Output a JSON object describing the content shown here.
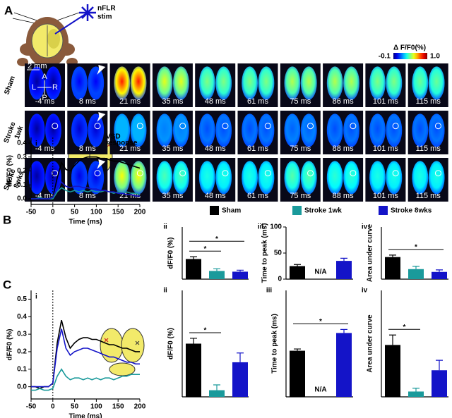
{
  "figure_labels": {
    "a": "A",
    "b": "B",
    "c": "C"
  },
  "panel_a": {
    "stim_label": [
      "nFLR",
      "stim"
    ],
    "colorbar": {
      "label": "Δ F/F0(%)",
      "ticks": [
        {
          "value": -0.1,
          "label": "-0.1"
        },
        {
          "value": 1.0,
          "label": "1.0"
        }
      ]
    },
    "scale_label": "2 mm",
    "orientation": [
      "A",
      "P",
      "L",
      "R"
    ],
    "rows": [
      {
        "label": [
          "Sham"
        ],
        "times": [
          "-4 ms",
          "8 ms",
          "21 ms",
          "35 ms",
          "48 ms",
          "61 ms",
          "75 ms",
          "86 ms",
          "101 ms",
          "115 ms"
        ]
      },
      {
        "label": [
          "Stroke",
          "1wk"
        ],
        "times": [
          "-4 ms",
          "8 ms",
          "21 ms",
          "35 ms",
          "48 ms",
          "61 ms",
          "75 ms",
          "88 ms",
          "101 ms",
          "115 ms"
        ]
      },
      {
        "label": [
          "Stroke",
          "8wks"
        ],
        "times": [
          "-4 ms",
          "8 ms",
          "21 ms",
          "35 ms",
          "48 ms",
          "61 ms",
          "75 ms",
          "88 ms",
          "101 ms",
          "115 ms"
        ]
      }
    ]
  },
  "brain_b_label": [
    "VSD",
    "response"
  ],
  "chart_data": [
    {
      "type": "line",
      "panel_label": "i",
      "ylabel": "dF/F0 (%)",
      "xlabel": "Time (ms)",
      "x": [
        -50,
        -40,
        -30,
        -20,
        -10,
        0,
        10,
        20,
        30,
        40,
        50,
        60,
        70,
        80,
        90,
        100,
        110,
        120,
        130,
        140,
        150,
        160,
        170,
        180,
        190,
        200
      ],
      "xlim": [
        -50,
        200
      ],
      "xticks": [
        -50,
        0,
        50,
        100,
        150,
        200
      ],
      "ylim": [
        -0.04,
        0.44
      ],
      "yticks": [
        {
          "value": 0,
          "label": "0.0"
        },
        0.1,
        0.2,
        0.3,
        0.4
      ],
      "series": [
        {
          "name": "Sham",
          "color": "#000000",
          "values": [
            0,
            0,
            0,
            0,
            0,
            0.01,
            0.15,
            0.26,
            0.21,
            0.2,
            0.24,
            0.27,
            0.29,
            0.3,
            0.3,
            0.3,
            0.29,
            0.29,
            0.28,
            0.27,
            0.27,
            0.26,
            0.25,
            0.24,
            0.23,
            0.22
          ]
        },
        {
          "name": "Stroke 1wk",
          "color": "#1a9a9b",
          "values": [
            0,
            0,
            0.01,
            0,
            0,
            0,
            0.05,
            0.08,
            0.06,
            0.05,
            0.06,
            0.05,
            0.06,
            0.05,
            0.06,
            0.05,
            0.05,
            0.06,
            0.05,
            0.04,
            0.05,
            0.04,
            0.05,
            0.04,
            0.04,
            0.03
          ]
        },
        {
          "name": "Stroke 8wks",
          "color": "#1414c8",
          "values": [
            0,
            0,
            0,
            0,
            0,
            0.01,
            0.08,
            0.12,
            0.09,
            0.08,
            0.09,
            0.09,
            0.08,
            0.08,
            0.07,
            0.07,
            0.06,
            0.06,
            0.05,
            0.05,
            0.04,
            0.04,
            0.03,
            0.03,
            0.02,
            0.02
          ]
        }
      ]
    },
    {
      "type": "bar",
      "panel_label": "ii",
      "ylabel": "dF/F0 (%)",
      "ylim": [
        0,
        0.7
      ],
      "colors": [
        "#000000",
        "#1a9a9b",
        "#1414c8"
      ],
      "values": [
        0.27,
        0.11,
        0.1
      ],
      "errors": [
        0.03,
        0.03,
        0.02
      ],
      "significance": [
        {
          "from": 0,
          "to": 1,
          "label": "*"
        },
        {
          "from": 0,
          "to": 2,
          "label": "*"
        }
      ]
    },
    {
      "type": "bar",
      "panel_label": "iii",
      "ylabel": "Time to peak (ms)",
      "ylim": [
        0,
        100
      ],
      "yticks": [
        0,
        50,
        100
      ],
      "colors": [
        "#000000",
        "#1a9a9b",
        "#1414c8"
      ],
      "values": [
        25,
        null,
        35
      ],
      "value_labels": [
        null,
        "N/A",
        null
      ],
      "errors": [
        3,
        null,
        5
      ]
    },
    {
      "type": "bar",
      "panel_label": "iv",
      "ylabel": "Area under curve",
      "ylim": [
        0,
        130
      ],
      "colors": [
        "#000000",
        "#1a9a9b",
        "#1414c8"
      ],
      "values": [
        55,
        25,
        18
      ],
      "errors": [
        5,
        7,
        5
      ],
      "significance": [
        {
          "from": 0,
          "to": 2,
          "label": "*"
        }
      ]
    },
    {
      "type": "line",
      "panel_label": "i",
      "ylabel": "dF/F0 (%)",
      "xlabel": "Time (ms)",
      "x": [
        -50,
        -40,
        -30,
        -20,
        -10,
        0,
        10,
        20,
        30,
        40,
        50,
        60,
        70,
        80,
        90,
        100,
        110,
        120,
        130,
        140,
        150,
        160,
        170,
        180,
        190,
        200
      ],
      "xlim": [
        -50,
        200
      ],
      "xticks": [
        -50,
        0,
        50,
        100,
        150,
        200
      ],
      "ylim": [
        -0.07,
        0.55
      ],
      "yticks": [
        {
          "value": 0,
          "label": "0.0"
        },
        0.1,
        0.2,
        0.3,
        0.4,
        0.5
      ],
      "series": [
        {
          "color": "#000000",
          "values": [
            0,
            0,
            -0.01,
            0,
            0,
            0.02,
            0.25,
            0.38,
            0.28,
            0.22,
            0.25,
            0.27,
            0.28,
            0.28,
            0.27,
            0.27,
            0.26,
            0.25,
            0.24,
            0.24,
            0.23,
            0.22,
            0.22,
            0.21,
            0.2,
            0.2
          ]
        },
        {
          "color": "#1a9a9b",
          "values": [
            -0.02,
            -0.02,
            -0.01,
            -0.02,
            -0.02,
            -0.01,
            0.06,
            0.1,
            0.06,
            0.04,
            0.05,
            0.05,
            0.04,
            0.05,
            0.04,
            0.05,
            0.04,
            0.05,
            0.05,
            0.04,
            0.05,
            0.06,
            0.06,
            0.07,
            0.07,
            0.07
          ]
        },
        {
          "color": "#1414c8",
          "values": [
            0,
            0,
            0,
            0,
            0,
            0.02,
            0.22,
            0.33,
            0.22,
            0.18,
            0.2,
            0.21,
            0.22,
            0.22,
            0.21,
            0.2,
            0.19,
            0.18,
            0.17,
            0.17,
            0.16,
            0.15,
            0.14,
            0.14,
            0.13,
            0.13
          ]
        }
      ]
    },
    {
      "type": "bar",
      "panel_label": "ii",
      "ylabel": "dF/F0 (%)",
      "ylim": [
        0,
        0.8
      ],
      "colors": [
        "#000000",
        "#1a9a9b",
        "#1414c8"
      ],
      "values": [
        0.4,
        0.05,
        0.26
      ],
      "errors": [
        0.04,
        0.04,
        0.07
      ],
      "significance": [
        {
          "from": 0,
          "to": 1,
          "label": "*"
        }
      ]
    },
    {
      "type": "bar",
      "panel_label": "iii",
      "ylabel": "Time to peak (ms)",
      "ylim": [
        0,
        60
      ],
      "colors": [
        "#000000",
        "#1a9a9b",
        "#1414c8"
      ],
      "values": [
        26,
        null,
        36
      ],
      "value_labels": [
        null,
        "N/A",
        null
      ],
      "errors": [
        1,
        null,
        2
      ],
      "significance": [
        {
          "from": 0,
          "to": 2,
          "label": "*"
        }
      ]
    },
    {
      "type": "bar",
      "panel_label": "iv",
      "ylabel": "Area under curve",
      "ylim": [
        0,
        160
      ],
      "colors": [
        "#000000",
        "#1a9a9b",
        "#1414c8"
      ],
      "values": [
        78,
        8,
        40
      ],
      "errors": [
        15,
        5,
        15
      ],
      "significance": [
        {
          "from": 0,
          "to": 1,
          "label": "*"
        }
      ]
    }
  ]
}
